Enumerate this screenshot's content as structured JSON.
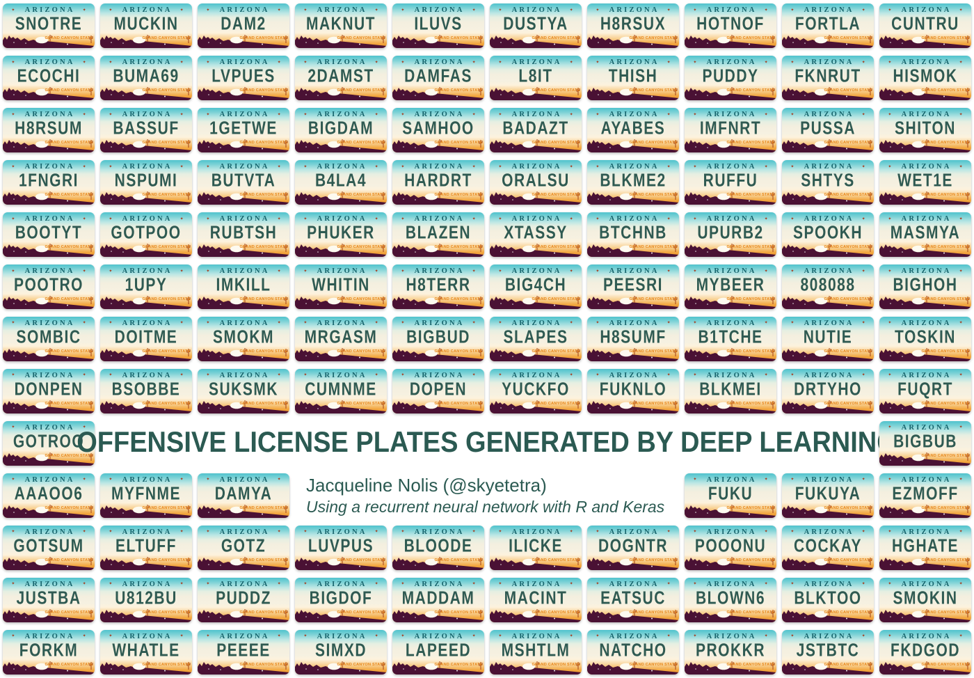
{
  "poster": {
    "title": "OFFENSIVE LICENSE PLATES GENERATED BY DEEP LEARNING",
    "author_line": "Jacqueline Nolis (@skyetetra)",
    "method_line": "Using a recurrent neural network with R and Keras"
  },
  "plate_template": {
    "state": "ARIZONA",
    "slogan": "GRAND CANYON STATE",
    "star_icon": "✦",
    "colors": {
      "sky_teal": "#4fc3cd",
      "cream": "#f4efdf",
      "sunset_orange": "#ee9022",
      "mountain_maroon": "#4a1134",
      "plate_text": "#2f5a52",
      "state_name_text": "#16646c",
      "slogan_text": "#e8881c",
      "star_accent": "#a63a1c",
      "title_text": "#2b5a52"
    }
  },
  "grid": {
    "columns": 10,
    "rows": [
      [
        "SNOTRE",
        "MUCKIN",
        "DAM2",
        "MAKNUT",
        "ILUVS",
        "DUSTYA",
        "H8RSUX",
        "HOTNOF",
        "FORTLA",
        "CUNTRU"
      ],
      [
        "ECOCHI",
        "BUMA69",
        "LVPUES",
        "2DAMST",
        "DAMFAS",
        "L8IT",
        "THISH",
        "PUDDY",
        "FKNRUT",
        "HISMOK"
      ],
      [
        "H8RSUM",
        "BASSUF",
        "1GETWE",
        "BIGDAM",
        "SAMHOO",
        "BADAZT",
        "AYABES",
        "IMFNRT",
        "PUSSA",
        "SHITON"
      ],
      [
        "1FNGRI",
        "NSPUMI",
        "BUTVTA",
        "B4LA4",
        "HARDRT",
        "ORALSU",
        "BLKME2",
        "RUFFU",
        "SHTYS",
        "WET1E"
      ],
      [
        "BOOTYT",
        "GOTPOO",
        "RUBTSH",
        "PHUKER",
        "BLAZEN",
        "XTASSY",
        "BTCHNB",
        "UPURB2",
        "SPOOKH",
        "MASMYA"
      ],
      [
        "POOTRO",
        "1UPY",
        "IMKILL",
        "WHITIN",
        "H8TERR",
        "BIG4CH",
        "PEESRI",
        "MYBEER",
        "808088",
        "BIGHOH"
      ],
      [
        "SOMBIC",
        "DOITME",
        "SMOKM",
        "MRGASM",
        "BIGBUD",
        "SLAPES",
        "H8SUMF",
        "B1TCHE",
        "NUTIE",
        "TOSKIN"
      ],
      [
        "DONPEN",
        "BSOBBE",
        "SUKSMK",
        "CUMNME",
        "DOPEN",
        "YUCKFO",
        "FUKNLO",
        "BLKMEI",
        "DRTYHO",
        "FUQRT"
      ],
      [
        "GOTROO",
        {
          "slot": "title",
          "span": 8
        },
        "BIGBUB"
      ],
      [
        "AAAOO6",
        "MYFNME",
        "DAMYA",
        {
          "slot": "attribution",
          "span": 4
        },
        "FUKU",
        "FUKUYA",
        "EZMOFF"
      ],
      [
        "GOTSUM",
        "ELTUFF",
        "GOTZ",
        "LUVPUS",
        "BLOODE",
        "ILICKE",
        "DOGNTR",
        "POOONU",
        "COCKAY",
        "HGHATE"
      ],
      [
        "JUSTBA",
        "U812BU",
        "PUDDZ",
        "BIGDOF",
        "MADDAM",
        "MACINT",
        "EATSUC",
        "BLOWN6",
        "BLKTOO",
        "SMOKIN"
      ],
      [
        "FORKM",
        "WHATLE",
        "PEEEE",
        "SIMXD",
        "LAPEED",
        "MSHTLM",
        "NATCHO",
        "PROKKR",
        "JSTBTC",
        "FKDGOD"
      ]
    ]
  }
}
